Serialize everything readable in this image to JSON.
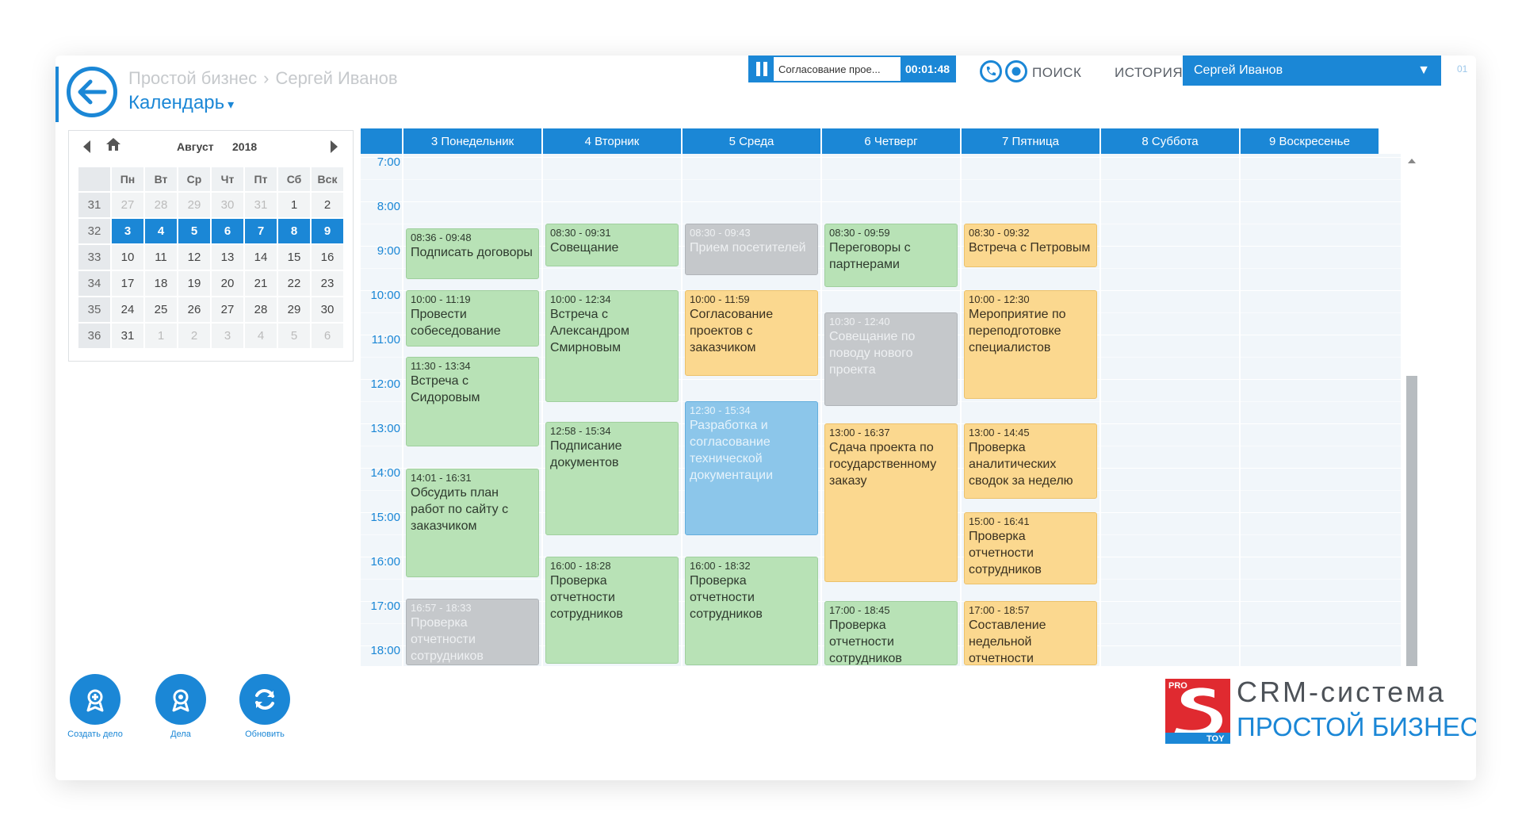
{
  "header": {
    "breadcrumb": [
      "Простой бизнес",
      "Сергей Иванов"
    ],
    "breadcrumb_sep": "›",
    "title": "Календарь",
    "title_caret": "▾",
    "task_name": "Согласование прое...",
    "timer": "00:01:48",
    "search_label": "ПОИСК",
    "history_label": "ИСТОРИЯ",
    "user_name": "Сергей Иванов",
    "user_caret": "▼",
    "edge_text": "01"
  },
  "mini_calendar": {
    "month": "Август",
    "year": "2018",
    "weekday_headers": [
      "Пн",
      "Вт",
      "Ср",
      "Чт",
      "Пт",
      "Сб",
      "Вск"
    ],
    "weeks": [
      {
        "week": "31",
        "days": [
          "27",
          "28",
          "29",
          "30",
          "31",
          "1",
          "2"
        ]
      },
      {
        "week": "32",
        "days": [
          "3",
          "4",
          "5",
          "6",
          "7",
          "8",
          "9"
        ]
      },
      {
        "week": "33",
        "days": [
          "10",
          "11",
          "12",
          "13",
          "14",
          "15",
          "16"
        ]
      },
      {
        "week": "34",
        "days": [
          "17",
          "18",
          "19",
          "20",
          "21",
          "22",
          "23"
        ]
      },
      {
        "week": "35",
        "days": [
          "24",
          "25",
          "26",
          "27",
          "28",
          "29",
          "30"
        ]
      },
      {
        "week": "36",
        "days": [
          "31",
          "1",
          "2",
          "3",
          "4",
          "5",
          "6"
        ]
      }
    ]
  },
  "week_view": {
    "days": [
      "3 Понедельник",
      "4 Вторник",
      "5 Среда",
      "6 Четверг",
      "7 Пятница",
      "8 Суббота",
      "9 Воскресенье"
    ],
    "hours": [
      "7:00",
      "8:00",
      "9:00",
      "10:00",
      "11:00",
      "12:00",
      "13:00",
      "14:00",
      "15:00",
      "16:00",
      "17:00",
      "18:00"
    ],
    "events": [
      {
        "day": 0,
        "start": "08:36",
        "end": "09:48",
        "time": "08:36 - 09:48",
        "title": "Подписать договоры",
        "color": "green"
      },
      {
        "day": 0,
        "start": "10:00",
        "end": "11:19",
        "time": "10:00 - 11:19",
        "title": "Провести собеседование",
        "color": "green"
      },
      {
        "day": 0,
        "start": "11:30",
        "end": "13:34",
        "time": "11:30 - 13:34",
        "title": "Встреча с Сидоровым",
        "color": "green"
      },
      {
        "day": 0,
        "start": "14:01",
        "end": "16:31",
        "time": "14:01 - 16:31",
        "title": "Обсудить план работ по сайту с заказчиком",
        "color": "green"
      },
      {
        "day": 0,
        "start": "16:57",
        "end": "18:33",
        "time": "16:57 - 18:33",
        "title": "Проверка отчетности сотрудников",
        "color": "gray"
      },
      {
        "day": 1,
        "start": "08:30",
        "end": "09:31",
        "time": "08:30 - 09:31",
        "title": "Совещание",
        "color": "green"
      },
      {
        "day": 1,
        "start": "10:00",
        "end": "12:34",
        "time": "10:00 - 12:34",
        "title": "Встреча с Александром Смирновым",
        "color": "green"
      },
      {
        "day": 1,
        "start": "12:58",
        "end": "15:34",
        "time": "12:58 - 15:34",
        "title": "Подписание документов",
        "color": "green"
      },
      {
        "day": 1,
        "start": "16:00",
        "end": "18:28",
        "time": "16:00 - 18:28",
        "title": "Проверка отчетности сотрудников",
        "color": "green"
      },
      {
        "day": 2,
        "start": "08:30",
        "end": "09:43",
        "time": "08:30 - 09:43",
        "title": "Прием посетителей",
        "color": "gray"
      },
      {
        "day": 2,
        "start": "10:00",
        "end": "11:59",
        "time": "10:00 - 11:59",
        "title": "Согласование проектов с заказчиком",
        "color": "yellow"
      },
      {
        "day": 2,
        "start": "12:30",
        "end": "15:34",
        "time": "12:30 - 15:34",
        "title": "Разработка и согласование технической документации",
        "color": "blue"
      },
      {
        "day": 2,
        "start": "16:00",
        "end": "18:32",
        "time": "16:00 - 18:32",
        "title": "Проверка отчетности сотрудников",
        "color": "green"
      },
      {
        "day": 3,
        "start": "08:30",
        "end": "09:59",
        "time": "08:30 - 09:59",
        "title": "Переговоры с партнерами",
        "color": "green"
      },
      {
        "day": 3,
        "start": "10:30",
        "end": "12:40",
        "time": "10:30 - 12:40",
        "title": "Совещание по поводу нового проекта",
        "color": "gray"
      },
      {
        "day": 3,
        "start": "13:00",
        "end": "16:37",
        "time": "13:00 - 16:37",
        "title": "Сдача проекта по государственному заказу",
        "color": "yellow"
      },
      {
        "day": 3,
        "start": "17:00",
        "end": "18:45",
        "time": "17:00 - 18:45",
        "title": "Проверка отчетности сотрудников",
        "color": "green"
      },
      {
        "day": 4,
        "start": "08:30",
        "end": "09:32",
        "time": "08:30 - 09:32",
        "title": "Встреча с Петровым",
        "color": "yellow"
      },
      {
        "day": 4,
        "start": "10:00",
        "end": "12:30",
        "time": "10:00 - 12:30",
        "title": "Мероприятие по переподготовке специалистов",
        "color": "yellow"
      },
      {
        "day": 4,
        "start": "13:00",
        "end": "14:45",
        "time": "13:00 - 14:45",
        "title": "Проверка аналитических сводок за неделю",
        "color": "yellow"
      },
      {
        "day": 4,
        "start": "15:00",
        "end": "16:41",
        "time": "15:00 - 16:41",
        "title": "Проверка отчетности сотрудников",
        "color": "yellow"
      },
      {
        "day": 4,
        "start": "17:00",
        "end": "18:57",
        "time": "17:00 - 18:57",
        "title": "Составление недельной отчетности",
        "color": "yellow"
      }
    ]
  },
  "actions": {
    "create": "Создать дело",
    "tasks": "Дела",
    "refresh": "Обновить"
  },
  "brand": {
    "line1": "CRM-система",
    "line2": "ПРОСТОЙ БИЗНЕС",
    "logo_text_top": "PRO",
    "logo_text_bottom": "TOY"
  },
  "colors": {
    "accent": "#1b87d6",
    "event_green": "#b8e2b6",
    "event_yellow": "#fbd88f",
    "event_gray": "#c5c8cb",
    "event_blue": "#8cc6ea",
    "logo_red": "#e02a30"
  }
}
